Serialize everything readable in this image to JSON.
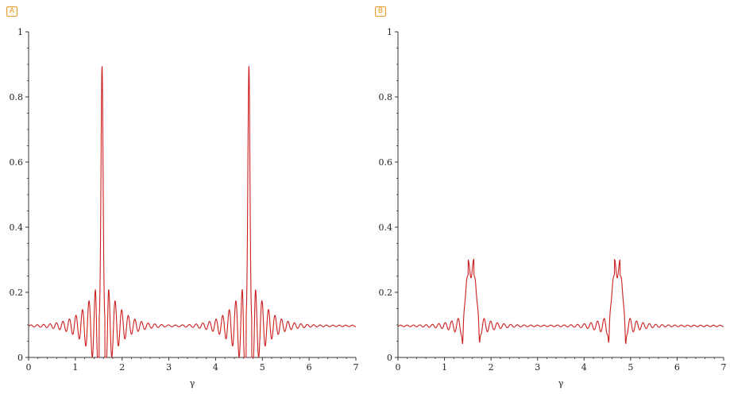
{
  "chart_data": [
    {
      "panel_label": "A",
      "type": "line",
      "xlabel": "γ",
      "ylabel": "",
      "xlim": [
        0,
        7
      ],
      "ylim": [
        0,
        1
      ],
      "xticks": [
        "0",
        "1",
        "2",
        "3",
        "4",
        "5",
        "6",
        "7"
      ],
      "yticks": [
        "0",
        "0.2",
        "0.4",
        "0.6",
        "0.8",
        "1"
      ],
      "line_color": "#cc1f1f",
      "baseline": 0.097,
      "series": [
        {
          "peaks": [
            1.5708,
            4.7124
          ],
          "peak_max": 0.9,
          "dip_min": 0.015,
          "ripple_near_peak": 0.28,
          "oscillation_period": 0.14
        }
      ]
    },
    {
      "panel_label": "B",
      "type": "line",
      "xlabel": "γ",
      "ylabel": "",
      "xlim": [
        0,
        7
      ],
      "ylim": [
        0,
        1
      ],
      "xticks": [
        "0",
        "1",
        "2",
        "3",
        "4",
        "5",
        "6",
        "7"
      ],
      "yticks": [
        "0",
        "0.2",
        "0.4",
        "0.6",
        "0.8",
        "1"
      ],
      "line_color": "#cc1f1f",
      "baseline": 0.097,
      "series": [
        {
          "peaks": [
            1.5708,
            4.7124
          ],
          "peak_max": 0.3,
          "dip_min": 0.05,
          "ripple_near_peak": 0.15,
          "oscillation_period": 0.14
        }
      ]
    }
  ]
}
